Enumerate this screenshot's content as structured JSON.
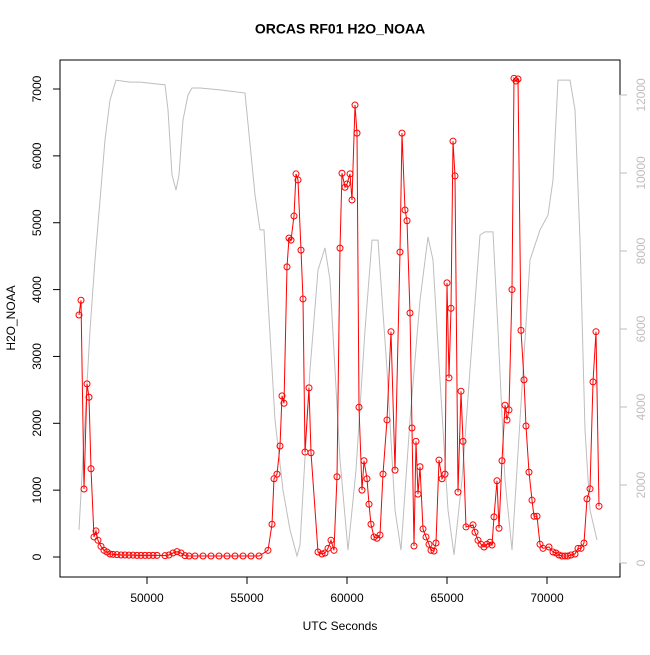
{
  "chart_data": {
    "type": "line",
    "title": "ORCAS RF01 H2O_NOAA",
    "xlabel": "UTC Seconds",
    "ylabel": "H2O_NOAA",
    "xlim": [
      45650,
      73650
    ],
    "ylim": [
      -299,
      7434
    ],
    "y2lim": [
      -359,
      12897
    ],
    "xticks": [
      50000,
      55000,
      60000,
      65000,
      70000
    ],
    "yticks": [
      0,
      1000,
      2000,
      3000,
      4000,
      5000,
      6000,
      7000
    ],
    "y2ticks": [
      0,
      2000,
      4000,
      6000,
      8000,
      10000,
      12000
    ],
    "y2color": "#bebebe",
    "series": [
      {
        "color": "#bebebe",
        "axis": "y2",
        "markers": false,
        "x": [
          46600,
          46900,
          47150,
          47400,
          47650,
          47900,
          48150,
          48450,
          49150,
          49650,
          50900,
          51050,
          51250,
          51450,
          51600,
          51800,
          52050,
          52250,
          52650,
          53650,
          54900,
          55400,
          55650,
          55850,
          56050,
          56400,
          56800,
          57150,
          57500,
          57650,
          58150,
          58550,
          58900,
          59150,
          59650,
          60050,
          60450,
          60900,
          61250,
          61550,
          62000,
          62400,
          62700,
          63150,
          63650,
          64050,
          64300,
          64650,
          65050,
          65350,
          65750,
          66150,
          66650,
          66900,
          67300,
          67550,
          67900,
          68250,
          68650,
          69150,
          69650,
          70050,
          70300,
          70550,
          71150,
          71400,
          71650,
          71900,
          72150,
          72500
        ],
        "values": [
          850,
          3670,
          5970,
          7770,
          9300,
          10850,
          11870,
          12380,
          12330,
          12330,
          12260,
          11620,
          9950,
          9560,
          9950,
          11360,
          12000,
          12180,
          12180,
          12130,
          12050,
          9440,
          8540,
          8540,
          6740,
          3670,
          1870,
          850,
          180,
          460,
          4950,
          7510,
          8080,
          7260,
          2640,
          330,
          2380,
          5970,
          8280,
          8280,
          4950,
          1360,
          330,
          3670,
          6740,
          8360,
          7770,
          4690,
          1360,
          210,
          2130,
          4950,
          8410,
          8490,
          8490,
          5970,
          2130,
          330,
          3670,
          7770,
          8540,
          8920,
          9820,
          12380,
          12380,
          11620,
          8280,
          3410,
          1360,
          590
        ]
      },
      {
        "color": "#ff0000",
        "markers": true,
        "x": [
          46600,
          46700,
          46850,
          47000,
          47100,
          47200,
          47350,
          47450,
          47550,
          47700,
          47850,
          48000,
          48150,
          48300,
          48500,
          48700,
          48900,
          49100,
          49300,
          49500,
          49700,
          49900,
          50100,
          50300,
          50500,
          50900,
          51100,
          51300,
          51500,
          51700,
          51900,
          52100,
          52400,
          52800,
          53200,
          53600,
          54000,
          54400,
          54800,
          55200,
          55600,
          56050,
          56250,
          56350,
          56500,
          56650,
          56750,
          56850,
          57000,
          57100,
          57200,
          57350,
          57450,
          57550,
          57700,
          57800,
          57900,
          58100,
          58200,
          58550,
          58750,
          58900,
          59050,
          59200,
          59350,
          59500,
          59650,
          59750,
          59900,
          60000,
          60150,
          60250,
          60400,
          60500,
          60600,
          60750,
          60850,
          61000,
          61100,
          61200,
          61350,
          61500,
          61650,
          61800,
          62000,
          62200,
          62400,
          62650,
          62750,
          62900,
          63000,
          63150,
          63250,
          63350,
          63450,
          63550,
          63650,
          63800,
          63950,
          64100,
          64200,
          64350,
          64450,
          64600,
          64750,
          64900,
          65000,
          65100,
          65200,
          65300,
          65400,
          65550,
          65700,
          65800,
          65950,
          66300,
          66400,
          66550,
          66700,
          66850,
          67000,
          67150,
          67250,
          67350,
          67500,
          67600,
          67750,
          67900,
          68000,
          68100,
          68250,
          68350,
          68450,
          68550,
          68700,
          68850,
          68950,
          69100,
          69250,
          69350,
          69500,
          69650,
          69800,
          70100,
          70300,
          70450,
          70600,
          70750,
          70900,
          71050,
          71200,
          71400,
          71550,
          71700,
          71850,
          72000,
          72150,
          72300,
          72450,
          72600
        ],
        "values": [
          3620,
          3840,
          1017,
          2590,
          2390,
          1320,
          300,
          390,
          250,
          160,
          100,
          75,
          45,
          40,
          35,
          30,
          30,
          28,
          28,
          25,
          25,
          25,
          25,
          25,
          25,
          20,
          30,
          60,
          80,
          60,
          20,
          15,
          15,
          15,
          15,
          15,
          15,
          15,
          15,
          15,
          15,
          100,
          490,
          1170,
          1240,
          1660,
          2410,
          2300,
          4340,
          4770,
          4740,
          5100,
          5730,
          5640,
          4590,
          3860,
          1570,
          2530,
          1560,
          75,
          45,
          60,
          130,
          250,
          100,
          1200,
          4620,
          5740,
          5530,
          5580,
          5730,
          5340,
          6760,
          6340,
          2240,
          1000,
          1440,
          1170,
          790,
          490,
          300,
          280,
          330,
          1240,
          2050,
          3370,
          1300,
          4560,
          6340,
          5190,
          5030,
          3650,
          1930,
          165,
          1730,
          940,
          1350,
          420,
          300,
          190,
          100,
          90,
          210,
          1450,
          1170,
          1240,
          4100,
          2680,
          3720,
          6220,
          5700,
          970,
          2480,
          1730,
          450,
          480,
          370,
          250,
          190,
          150,
          190,
          220,
          180,
          600,
          1140,
          430,
          1440,
          2270,
          2050,
          2200,
          4000,
          7160,
          7120,
          7150,
          3390,
          2650,
          1960,
          1270,
          850,
          610,
          610,
          190,
          130,
          150,
          75,
          60,
          30,
          15,
          15,
          15,
          30,
          45,
          130,
          130,
          210,
          870,
          1020,
          2620,
          3370,
          760
        ]
      }
    ]
  }
}
